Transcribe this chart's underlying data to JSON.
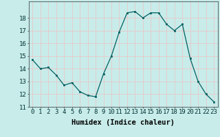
{
  "x": [
    0,
    1,
    2,
    3,
    4,
    5,
    6,
    7,
    8,
    9,
    10,
    11,
    12,
    13,
    14,
    15,
    16,
    17,
    18,
    19,
    20,
    21,
    22,
    23
  ],
  "y": [
    14.7,
    14.0,
    14.1,
    13.5,
    12.7,
    12.9,
    12.2,
    11.9,
    11.8,
    13.6,
    15.0,
    16.9,
    18.4,
    18.5,
    18.0,
    18.4,
    18.4,
    17.5,
    17.0,
    17.5,
    14.8,
    13.0,
    12.0,
    11.4
  ],
  "line_color": "#006060",
  "marker_color": "#006060",
  "bg_color": "#c8ecea",
  "grid_color": "#b0dedd",
  "xlabel": "Humidex (Indice chaleur)",
  "ylim": [
    11,
    19
  ],
  "xlim_min": -0.5,
  "xlim_max": 23.5,
  "yticks": [
    11,
    12,
    13,
    14,
    15,
    16,
    17,
    18
  ],
  "xlabel_fontsize": 7.5,
  "tick_fontsize": 6.5
}
